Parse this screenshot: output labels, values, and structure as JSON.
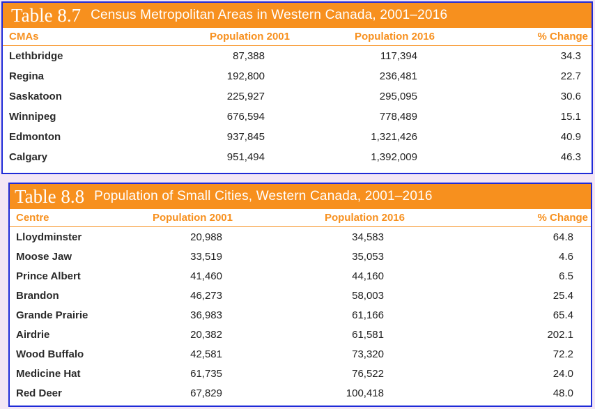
{
  "table87": {
    "number": "Table 8.7",
    "title": "Census Metropolitan Areas in Western Canada, 2001–2016",
    "headers": [
      "CMAs",
      "Population 2001",
      "Population 2016",
      "% Change"
    ],
    "rows": [
      [
        "Lethbridge",
        "87,388",
        "117,394",
        "34.3"
      ],
      [
        "Regina",
        "192,800",
        "236,481",
        "22.7"
      ],
      [
        "Saskatoon",
        "225,927",
        "295,095",
        "30.6"
      ],
      [
        "Winnipeg",
        "676,594",
        "778,489",
        "15.1"
      ],
      [
        "Edmonton",
        "937,845",
        "1,321,426",
        "40.9"
      ],
      [
        "Calgary",
        "951,494",
        "1,392,009",
        "46.3"
      ]
    ]
  },
  "table88": {
    "number": "Table 8.8",
    "title": "Population of Small Cities, Western Canada, 2001–2016",
    "headers": [
      "Centre",
      "Population 2001",
      "Population 2016",
      "% Change"
    ],
    "rows": [
      [
        "Lloydminster",
        "20,988",
        "34,583",
        "64.8"
      ],
      [
        "Moose Jaw",
        "33,519",
        "35,053",
        "4.6"
      ],
      [
        "Prince Albert",
        "41,460",
        "44,160",
        "6.5"
      ],
      [
        "Brandon",
        "46,273",
        "58,003",
        "25.4"
      ],
      [
        "Grande Prairie",
        "36,983",
        "61,166",
        "65.4"
      ],
      [
        "Airdrie",
        "20,382",
        "61,581",
        "202.1"
      ],
      [
        "Wood Buffalo",
        "42,581",
        "73,320",
        "72.2"
      ],
      [
        "Medicine Hat",
        "61,735",
        "76,522",
        "24.0"
      ],
      [
        "Red Deer",
        "67,829",
        "100,418",
        "48.0"
      ]
    ]
  },
  "colors": {
    "accent": "#f7901e",
    "border": "#1f2bd8",
    "background": "#f3e6f5"
  }
}
